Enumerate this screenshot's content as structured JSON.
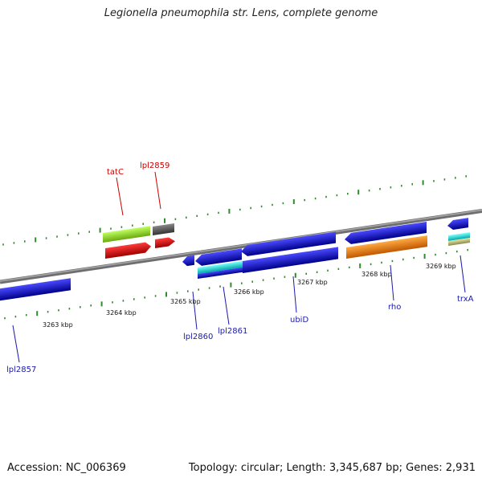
{
  "header": {
    "title": "Legionella pneumophila str. Lens, complete genome"
  },
  "footer": {
    "accession": "Accession: NC_006369",
    "topology": "Topology: circular; Length: 3,345,687 bp; Genes: 2,931"
  },
  "kbp_labels": [
    "3263 kbp",
    "3264 kbp",
    "3265 kbp",
    "3266 kbp",
    "3267 kbp",
    "3268 kbp",
    "3269 kbp"
  ],
  "gene_labels": {
    "tatC": "tatC",
    "lpl2859": "lpl2859",
    "lpl2857": "lpl2857",
    "lpl2860": "lpl2860",
    "lpl2861": "lpl2861",
    "ubiD": "ubiD",
    "rho": "rho",
    "trxA": "trxA"
  },
  "colors": {
    "forward_label": "#cc0000",
    "reverse_label": "#1a1aaa",
    "backbone": "#888888",
    "ticks": "#2e8b2e",
    "gene_blue": "#1010e0",
    "gene_red": "#ee1111",
    "gene_green": "#99ee33",
    "gene_gray": "#666666",
    "gene_cyan": "#22eeee",
    "gene_orange": "#ff8811",
    "gene_khaki": "#cccc88"
  }
}
